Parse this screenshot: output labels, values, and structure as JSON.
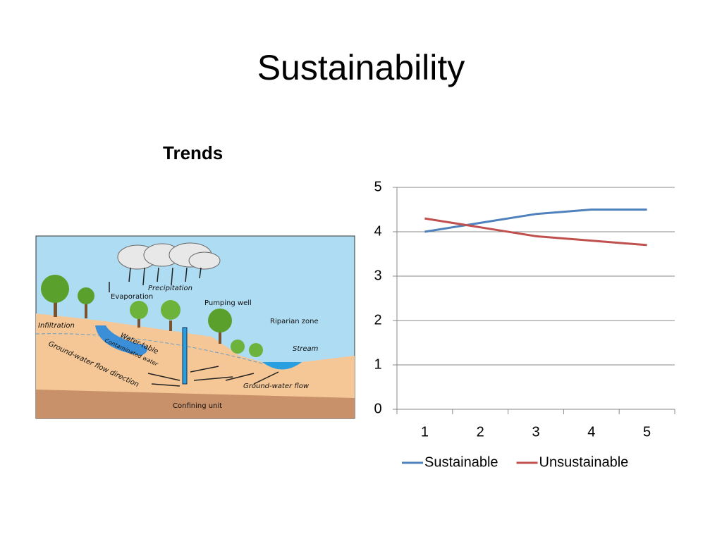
{
  "title": "Sustainability",
  "subtitle": "Trends",
  "diagram": {
    "labels": [
      "Precipitation",
      "Evaporation",
      "Pumping well",
      "Riparian zone",
      "Infiltration",
      "Water-table",
      "Contaminated water",
      "Stream",
      "Ground-water flow direction",
      "Ground-water flow",
      "Confining unit"
    ]
  },
  "chart_data": {
    "type": "line",
    "categories": [
      "1",
      "2",
      "3",
      "4",
      "5"
    ],
    "series": [
      {
        "name": "Sustainable",
        "color": "#4f81bd",
        "values": [
          4,
          4.2,
          4.4,
          4.5,
          4.5
        ]
      },
      {
        "name": "Unsustainable",
        "color": "#c0504d",
        "values": [
          4.3,
          4.1,
          3.9,
          3.8,
          3.7
        ]
      }
    ],
    "ylim": [
      0,
      5
    ],
    "yticks": [
      0,
      1,
      2,
      3,
      4,
      5
    ],
    "grid": true,
    "legend": "bottom"
  }
}
